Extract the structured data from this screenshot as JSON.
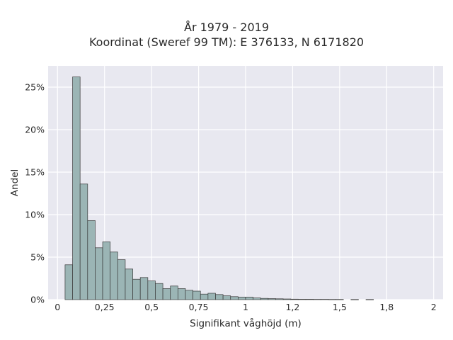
{
  "chart_data": {
    "type": "bar",
    "title": "År 1979 - 2019",
    "subtitle": "Koordinat (Sweref 99 TM): E 376133, N 6171820",
    "xlabel": "Signifikant våghöjd (m)",
    "ylabel": "Andel",
    "xlim": [
      -0.05,
      2.05
    ],
    "ylim": [
      0,
      27.5
    ],
    "x_ticks": [
      {
        "value": 0,
        "label": "0"
      },
      {
        "value": 0.25,
        "label": "0,25"
      },
      {
        "value": 0.5,
        "label": "0,5"
      },
      {
        "value": 0.75,
        "label": "0,75"
      },
      {
        "value": 1,
        "label": "1"
      },
      {
        "value": 1.25,
        "label": "1,2"
      },
      {
        "value": 1.5,
        "label": "1,5"
      },
      {
        "value": 1.75,
        "label": "1,8"
      },
      {
        "value": 2,
        "label": "2"
      }
    ],
    "y_ticks": [
      {
        "value": 0,
        "label": "0%"
      },
      {
        "value": 5,
        "label": "5%"
      },
      {
        "value": 10,
        "label": "10%"
      },
      {
        "value": 15,
        "label": "15%"
      },
      {
        "value": 20,
        "label": "20%"
      },
      {
        "value": 25,
        "label": "25%"
      }
    ],
    "bin_width": 0.04,
    "bins_start": [
      0.04,
      0.08,
      0.12,
      0.16,
      0.2,
      0.24,
      0.28,
      0.32,
      0.36,
      0.4,
      0.44,
      0.48,
      0.52,
      0.56,
      0.6,
      0.64,
      0.68,
      0.72,
      0.76,
      0.8,
      0.84,
      0.88,
      0.92,
      0.96,
      1.0,
      1.04,
      1.08,
      1.12,
      1.16,
      1.2,
      1.24,
      1.28,
      1.32,
      1.36,
      1.4,
      1.44,
      1.48,
      1.52,
      1.56,
      1.6,
      1.64,
      1.68,
      1.72,
      1.76,
      1.8,
      1.84,
      1.88,
      1.92
    ],
    "values": [
      4.1,
      26.2,
      13.6,
      9.3,
      6.1,
      6.8,
      5.6,
      4.7,
      3.6,
      2.4,
      2.6,
      2.2,
      1.9,
      1.3,
      1.6,
      1.3,
      1.1,
      1.0,
      0.65,
      0.75,
      0.6,
      0.45,
      0.35,
      0.3,
      0.3,
      0.2,
      0.15,
      0.12,
      0.1,
      0.08,
      0.06,
      0.05,
      0.05,
      0.04,
      0.04,
      0.03,
      0.03,
      0.0,
      0.02,
      0.0,
      0.02,
      0.0,
      0.0,
      0.0,
      0.0,
      0.0,
      0.0,
      0.0
    ],
    "bar_color": "#9bb5b5",
    "bar_edge_color": "#3a3a3a",
    "plot_background": "#e8e8f0",
    "grid": true,
    "grid_color": "#ffffff"
  }
}
